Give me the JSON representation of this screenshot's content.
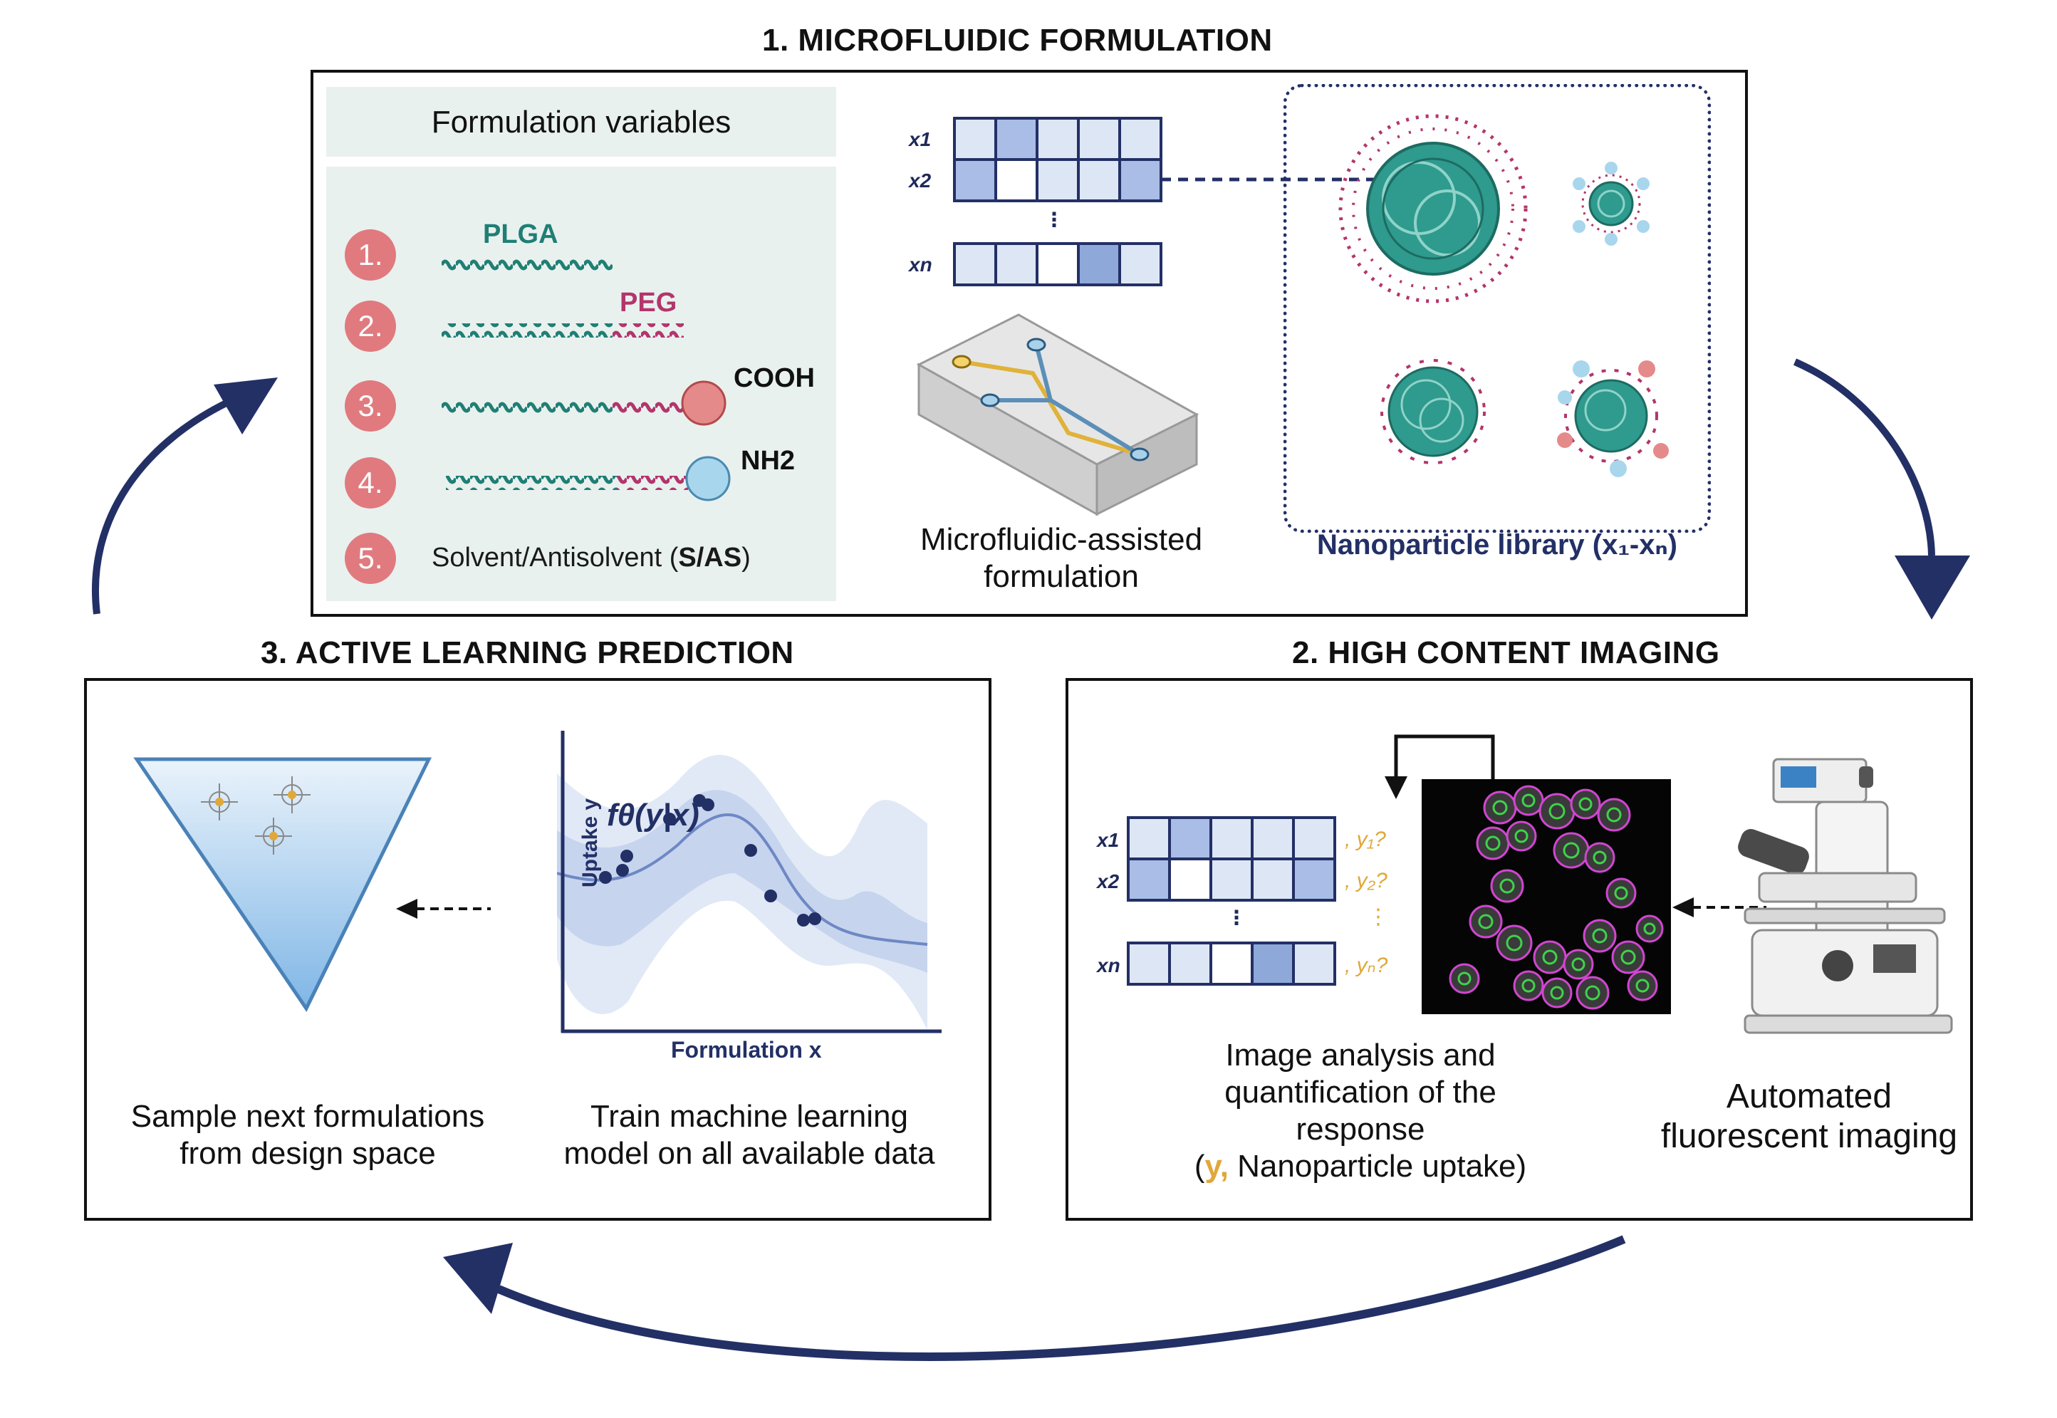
{
  "sections": {
    "formulation": {
      "title": "1. MICROFLUIDIC FORMULATION",
      "variables_header": "Formulation variables",
      "variables": [
        {
          "num": "1.",
          "label": "PLGA"
        },
        {
          "num": "2.",
          "label": "PEG"
        },
        {
          "num": "3.",
          "label": "COOH"
        },
        {
          "num": "4.",
          "label": "NH2"
        },
        {
          "num": "5.",
          "label_pre": "Solvent/Antisolvent (",
          "label_bold": "S/AS",
          "label_post": ")"
        }
      ],
      "matrix_rows": [
        "x1",
        "x2",
        "⋮",
        "xn"
      ],
      "microfluidic_caption_1": "Microfluidic-assisted",
      "microfluidic_caption_2": "formulation",
      "library_caption": "Nanoparticle library (x₁-xₙ)"
    },
    "imaging": {
      "title": "2. HIGH CONTENT IMAGING",
      "y_labels": [
        ", y₁?",
        ", y₂?",
        "⋮",
        ", yₙ?"
      ],
      "analysis_caption": [
        "Image analysis and",
        "quantification of the",
        "response"
      ],
      "analysis_caption_last_y": "y,",
      "analysis_caption_last_rest": " Nanoparticle uptake)",
      "analysis_caption_last_open": "(",
      "imaging_caption": [
        "Automated",
        "fluorescent imaging"
      ]
    },
    "active_learning": {
      "title": "3. ACTIVE LEARNING PREDICTION",
      "sample_caption": [
        "Sample next formulations",
        "from design space"
      ],
      "train_caption": [
        "Train machine learning",
        "model on all available data"
      ],
      "model_label": "fθ(y|x)",
      "x_axis_label": "Formulation x",
      "y_axis_label": "Uptake y"
    }
  },
  "colors": {
    "navy": "#233066",
    "teal": "#2f9a8e",
    "magenta": "#b3356b",
    "coral": "#e07a7e",
    "cell_light": "#dde6f5",
    "cell_mid": "#a9bde6",
    "cell_dark": "#8ea8da",
    "gold": "#e0a83a",
    "panel_bg": "#e9f1ef"
  }
}
